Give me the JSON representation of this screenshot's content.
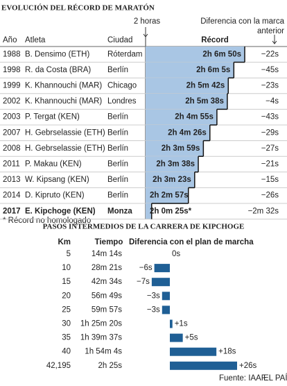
{
  "chart_data": [
    {
      "type": "record-steps",
      "title": "EVOLUCIÓN DEL RÉCORD DE MARATÓN",
      "columns": [
        "Año",
        "Atleta",
        "Ciudad",
        "Récord",
        "Diferencia con la marca anterior"
      ],
      "reference": {
        "value": 7200,
        "label": "2 horas"
      },
      "color": "#a9c6e4",
      "rows": [
        {
          "year": "1988",
          "athlete": "B. Densimo (ETH)",
          "city": "Róterdam",
          "value": 7610,
          "value_label": "2h 6m 50s",
          "difference": "−22s"
        },
        {
          "year": "1998",
          "athlete": "R. da Costa (BRA)",
          "city": "Berlín",
          "value": 7565,
          "value_label": "2h 6m 5s",
          "difference": "−45s"
        },
        {
          "year": "1999",
          "athlete": "K. Khannouchi (MAR)",
          "city": "Chicago",
          "value": 7542,
          "value_label": "2h 5m 42s",
          "difference": "−23s"
        },
        {
          "year": "2002",
          "athlete": "K. Khannouchi (MAR)",
          "city": "Londres",
          "value": 7538,
          "value_label": "2h 5m 38s",
          "difference": "−4s"
        },
        {
          "year": "2003",
          "athlete": "P. Tergat (KEN)",
          "city": "Berlín",
          "value": 7495,
          "value_label": "2h 4m 55s",
          "difference": "−43s"
        },
        {
          "year": "2007",
          "athlete": "H. Gebrselassie (ETH)",
          "city": "Berlín",
          "value": 7466,
          "value_label": "2h 4m 26s",
          "difference": "−29s"
        },
        {
          "year": "2008",
          "athlete": "H. Gebrselassie (ETH)",
          "city": "Berlín",
          "value": 7439,
          "value_label": "2h 3m 59s",
          "difference": "−27s"
        },
        {
          "year": "2011",
          "athlete": "P. Makau (KEN)",
          "city": "Berlín",
          "value": 7418,
          "value_label": "2h 3m 38s",
          "difference": "−21s"
        },
        {
          "year": "2013",
          "athlete": "W. Kipsang (KEN)",
          "city": "Berlín",
          "value": 7403,
          "value_label": "2h 3m 23s",
          "difference": "−15s"
        },
        {
          "year": "2014",
          "athlete": "D. Kipruto (KEN)",
          "city": "Berlín",
          "value": 7377,
          "value_label": "2h 2m 57s",
          "difference": "−26s"
        },
        {
          "year": "2017",
          "athlete": "E. Kipchoge (KEN)",
          "city": "Monza",
          "value": 7225,
          "value_label": "2h 0m 25s*",
          "difference": "−2m 32s",
          "bold": true
        }
      ],
      "footnote": "* Récord no homologado"
    },
    {
      "type": "diverging-bar",
      "title": "PASOS INTERMEDIOS DE LA CARRERA DE KIPCHOGE",
      "columns": [
        "Km",
        "Tiempo",
        "Diferencia con el plan de marcha"
      ],
      "categories": [
        "5",
        "10",
        "15",
        "20",
        "25",
        "30",
        "35",
        "40",
        "42,195"
      ],
      "times": [
        "14m 14s",
        "28m 21s",
        "42m 34s",
        "56m 49s",
        "59m 57s",
        "1h 25m 20s",
        "1h 39m 37s",
        "1h 54m 4s",
        "2h 25s"
      ],
      "values": [
        0,
        -6,
        -7,
        -3,
        -3,
        1,
        5,
        18,
        26
      ],
      "value_labels": [
        "0s",
        "−6s",
        "−7s",
        "−3s",
        "−3s",
        "+1s",
        "+5s",
        "+18s",
        "+26s"
      ],
      "color": "#1f5f95"
    }
  ],
  "footer": {
    "source": "Fuente: IAAF.",
    "brand": "EL PAÍS"
  }
}
